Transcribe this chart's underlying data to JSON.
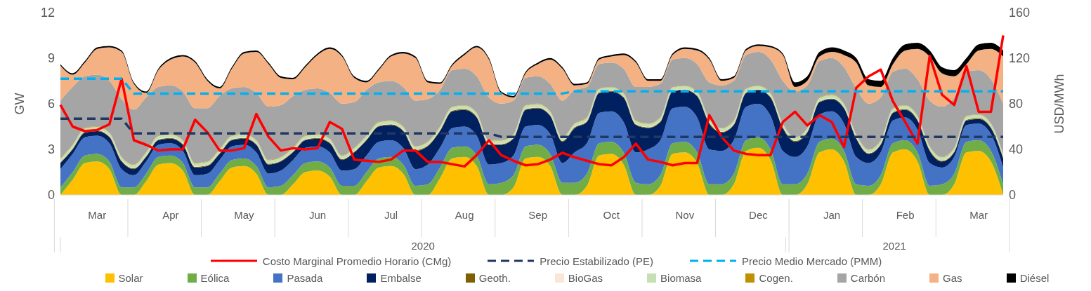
{
  "chart_data": {
    "type": "area",
    "stacked": true,
    "ylabel": "GW",
    "y2label": "USD/MWh",
    "ylim": [
      0,
      12
    ],
    "yticks": [
      0,
      3,
      6,
      9,
      12
    ],
    "y2lim": [
      0,
      160
    ],
    "y2ticks": [
      0,
      40,
      80,
      120,
      160
    ],
    "legend": "bottom",
    "annotations": [
      "2020",
      "2021"
    ],
    "categories": [
      null,
      null,
      null,
      "Mar",
      null,
      null,
      null,
      null,
      null,
      "Apr",
      null,
      null,
      null,
      null,
      null,
      "May",
      null,
      null,
      null,
      null,
      null,
      "Jun",
      null,
      null,
      null,
      null,
      null,
      "Jul",
      null,
      null,
      null,
      null,
      null,
      "Aug",
      null,
      null,
      null,
      null,
      null,
      "Sep",
      null,
      null,
      null,
      null,
      null,
      "Oct",
      null,
      null,
      null,
      null,
      null,
      "Nov",
      null,
      null,
      null,
      null,
      null,
      "Dec",
      null,
      null,
      null,
      null,
      null,
      "Jan",
      null,
      null,
      null,
      null,
      null,
      "Feb",
      null,
      null,
      null,
      null,
      null,
      "Mar",
      null,
      null
    ],
    "series": [
      {
        "name": "Solar",
        "type": "area",
        "color": "#ffc000",
        "values": [
          0,
          1.0,
          2.1,
          2.2,
          1.7,
          0,
          0,
          0.9,
          2.0,
          2.1,
          1.6,
          0,
          0,
          0.9,
          1.8,
          1.9,
          1.4,
          0,
          0,
          0.7,
          1.5,
          1.6,
          1.2,
          0,
          0,
          0.9,
          1.8,
          1.9,
          1.4,
          0,
          0,
          1.1,
          2.4,
          2.5,
          1.9,
          0,
          0,
          0.5,
          2.4,
          2.5,
          1.9,
          0,
          0,
          0.6,
          2.6,
          2.7,
          2.0,
          0,
          0,
          0.6,
          2.7,
          2.8,
          2.1,
          0,
          0,
          0.7,
          2.9,
          3.1,
          2.3,
          0,
          0,
          0.7,
          2.8,
          3.0,
          2.2,
          0,
          0,
          0.7,
          2.8,
          3.0,
          2.2,
          0,
          0,
          0.7,
          2.8,
          2.9,
          2.2,
          0
        ]
      },
      {
        "name": "Eólica",
        "type": "area",
        "color": "#70ad47",
        "values": [
          0.5,
          0.5,
          0.5,
          0.5,
          0.5,
          0.5,
          0.5,
          0.5,
          0.5,
          0.5,
          0.5,
          0.5,
          0.5,
          0.5,
          0.5,
          0.5,
          0.5,
          0.5,
          0.6,
          0.6,
          0.6,
          0.6,
          0.6,
          0.6,
          0.6,
          0.6,
          0.6,
          0.6,
          0.6,
          0.6,
          0.7,
          0.7,
          0.7,
          0.7,
          0.7,
          0.7,
          0.8,
          0.8,
          0.8,
          0.8,
          0.8,
          0.8,
          0.8,
          0.8,
          0.8,
          0.8,
          0.8,
          0.8,
          0.7,
          0.7,
          0.7,
          0.7,
          0.7,
          0.7,
          0.7,
          0.7,
          0.7,
          0.7,
          0.7,
          0.7,
          0.7,
          0.7,
          0.7,
          0.7,
          0.7,
          0.7,
          0.6,
          0.6,
          0.6,
          0.6,
          0.6,
          0.6,
          0.7,
          0.7,
          0.7,
          0.7,
          0.7,
          0.7
        ]
      },
      {
        "name": "Pasada",
        "type": "area",
        "color": "#4472c4",
        "values": [
          1.2,
          1.2,
          1.2,
          1.2,
          1.2,
          1.2,
          0.8,
          0.8,
          0.8,
          0.8,
          0.8,
          0.8,
          0.9,
          0.9,
          0.9,
          0.9,
          0.9,
          0.9,
          1.0,
          1.0,
          1.0,
          1.0,
          1.0,
          1.0,
          1.1,
          1.1,
          1.1,
          1.1,
          1.1,
          1.1,
          1.3,
          1.3,
          1.3,
          1.3,
          1.3,
          1.3,
          1.3,
          1.3,
          1.3,
          1.3,
          1.3,
          1.3,
          2.0,
          2.0,
          2.0,
          2.0,
          2.0,
          2.0,
          2.3,
          2.3,
          2.3,
          2.3,
          2.3,
          2.3,
          2.2,
          2.2,
          2.2,
          2.2,
          2.2,
          2.2,
          1.8,
          1.8,
          1.8,
          1.8,
          1.8,
          1.8,
          1.5,
          1.5,
          1.5,
          1.5,
          1.5,
          1.5,
          1.1,
          1.1,
          1.1,
          1.1,
          1.1,
          1.1
        ]
      },
      {
        "name": "Embalse",
        "type": "area",
        "color": "#002060",
        "values": [
          0.4,
          0.3,
          0.3,
          0.3,
          0.4,
          0.5,
          0.4,
          0.3,
          0.3,
          0.3,
          0.4,
          0.5,
          0.5,
          0.4,
          0.4,
          0.4,
          0.5,
          0.6,
          0.6,
          0.5,
          0.5,
          0.5,
          0.6,
          0.7,
          1.1,
          1.0,
          1.0,
          1.0,
          1.1,
          1.2,
          1.2,
          1.1,
          1.1,
          1.1,
          1.2,
          1.3,
          1.2,
          1.1,
          1.1,
          1.1,
          1.2,
          1.4,
          1.6,
          1.4,
          1.3,
          1.3,
          1.6,
          1.8,
          1.4,
          1.2,
          1.1,
          1.1,
          1.4,
          1.7,
          1.2,
          1.0,
          0.9,
          0.9,
          1.2,
          1.5,
          1.0,
          0.9,
          0.8,
          0.8,
          1.0,
          1.2,
          0.6,
          0.5,
          0.5,
          0.5,
          0.6,
          0.8,
          0.4,
          0.3,
          0.3,
          0.3,
          0.4,
          0.6
        ]
      },
      {
        "name": "Geoth.",
        "type": "area",
        "color": "#7f6000",
        "values": [
          0.05,
          0.05,
          0.05,
          0.05,
          0.05,
          0.05,
          0.05,
          0.05,
          0.05,
          0.05,
          0.05,
          0.05,
          0.05,
          0.05,
          0.05,
          0.05,
          0.05,
          0.05,
          0.05,
          0.05,
          0.05,
          0.05,
          0.05,
          0.05,
          0.05,
          0.05,
          0.05,
          0.05,
          0.05,
          0.05,
          0.05,
          0.05,
          0.05,
          0.05,
          0.05,
          0.05,
          0.05,
          0.05,
          0.05,
          0.05,
          0.05,
          0.05,
          0.05,
          0.05,
          0.05,
          0.05,
          0.05,
          0.05,
          0.05,
          0.05,
          0.05,
          0.05,
          0.05,
          0.05,
          0.05,
          0.05,
          0.05,
          0.05,
          0.05,
          0.05,
          0.05,
          0.05,
          0.05,
          0.05,
          0.05,
          0.05,
          0.05,
          0.05,
          0.05,
          0.05,
          0.05,
          0.05,
          0.05,
          0.05,
          0.05,
          0.05,
          0.05,
          0.05
        ]
      },
      {
        "name": "BioGas",
        "type": "area",
        "color": "#fbe5d6",
        "values": [
          0.03,
          0.03,
          0.03,
          0.03,
          0.03,
          0.03,
          0.03,
          0.03,
          0.03,
          0.03,
          0.03,
          0.03,
          0.03,
          0.03,
          0.03,
          0.03,
          0.03,
          0.03,
          0.03,
          0.03,
          0.03,
          0.03,
          0.03,
          0.03,
          0.03,
          0.03,
          0.03,
          0.03,
          0.03,
          0.03,
          0.03,
          0.03,
          0.03,
          0.03,
          0.03,
          0.03,
          0.03,
          0.03,
          0.03,
          0.03,
          0.03,
          0.03,
          0.03,
          0.03,
          0.03,
          0.03,
          0.03,
          0.03,
          0.03,
          0.03,
          0.03,
          0.03,
          0.03,
          0.03,
          0.03,
          0.03,
          0.03,
          0.03,
          0.03,
          0.03,
          0.03,
          0.03,
          0.03,
          0.03,
          0.03,
          0.03,
          0.03,
          0.03,
          0.03,
          0.03,
          0.03,
          0.03,
          0.03,
          0.03,
          0.03,
          0.03,
          0.03,
          0.03
        ]
      },
      {
        "name": "Biomasa",
        "type": "area",
        "color": "#c5e0b4",
        "values": [
          0.2,
          0.2,
          0.2,
          0.2,
          0.2,
          0.2,
          0.2,
          0.2,
          0.2,
          0.2,
          0.2,
          0.2,
          0.2,
          0.2,
          0.2,
          0.2,
          0.2,
          0.2,
          0.2,
          0.2,
          0.2,
          0.2,
          0.2,
          0.2,
          0.2,
          0.2,
          0.2,
          0.2,
          0.2,
          0.2,
          0.2,
          0.2,
          0.2,
          0.2,
          0.2,
          0.2,
          0.2,
          0.2,
          0.2,
          0.2,
          0.2,
          0.2,
          0.2,
          0.2,
          0.2,
          0.2,
          0.2,
          0.2,
          0.2,
          0.2,
          0.2,
          0.2,
          0.2,
          0.2,
          0.2,
          0.2,
          0.2,
          0.2,
          0.2,
          0.2,
          0.2,
          0.2,
          0.2,
          0.2,
          0.2,
          0.2,
          0.2,
          0.2,
          0.2,
          0.2,
          0.2,
          0.2,
          0.2,
          0.2,
          0.2,
          0.2,
          0.2,
          0.2
        ]
      },
      {
        "name": "Cogen.",
        "type": "area",
        "color": "#bf9000",
        "values": [
          0.03,
          0.03,
          0.03,
          0.03,
          0.03,
          0.03,
          0.03,
          0.03,
          0.03,
          0.03,
          0.03,
          0.03,
          0.03,
          0.03,
          0.03,
          0.03,
          0.03,
          0.03,
          0.03,
          0.03,
          0.03,
          0.03,
          0.03,
          0.03,
          0.03,
          0.03,
          0.03,
          0.03,
          0.03,
          0.03,
          0.03,
          0.03,
          0.03,
          0.03,
          0.03,
          0.03,
          0.03,
          0.03,
          0.03,
          0.03,
          0.03,
          0.03,
          0.03,
          0.03,
          0.03,
          0.03,
          0.03,
          0.03,
          0.03,
          0.03,
          0.03,
          0.03,
          0.03,
          0.03,
          0.03,
          0.03,
          0.03,
          0.03,
          0.03,
          0.03,
          0.03,
          0.03,
          0.03,
          0.03,
          0.03,
          0.03,
          0.03,
          0.03,
          0.03,
          0.03,
          0.03,
          0.03,
          0.03,
          0.03,
          0.03,
          0.03,
          0.03,
          0.03
        ]
      },
      {
        "name": "Carbón",
        "type": "area",
        "color": "#a5a5a5",
        "values": [
          3.8,
          3.8,
          3.4,
          3.4,
          3.4,
          3.8,
          3.6,
          3.6,
          3.2,
          3.2,
          3.2,
          3.6,
          3.5,
          3.5,
          3.1,
          3.1,
          3.1,
          3.5,
          3.4,
          3.4,
          3.0,
          3.0,
          3.0,
          3.4,
          3.0,
          3.0,
          2.6,
          2.6,
          2.6,
          3.0,
          2.8,
          2.4,
          2.4,
          2.4,
          2.4,
          2.8,
          2.4,
          2.2,
          1.8,
          1.8,
          1.8,
          2.4,
          2.2,
          2.0,
          1.6,
          1.6,
          1.6,
          2.2,
          2.4,
          2.2,
          1.8,
          1.8,
          1.8,
          2.4,
          2.8,
          2.6,
          2.2,
          2.2,
          2.2,
          2.8,
          3.0,
          2.8,
          2.4,
          2.4,
          2.4,
          3.0,
          3.0,
          2.8,
          2.4,
          2.4,
          2.4,
          3.0,
          3.3,
          3.3,
          2.9,
          2.9,
          2.9,
          3.3
        ]
      },
      {
        "name": "Gas",
        "type": "area",
        "color": "#f4b183",
        "values": [
          2.3,
          0.8,
          0.9,
          1.7,
          2.2,
          3.1,
          1.7,
          0.3,
          1.1,
          1.7,
          2.3,
          3.0,
          1.8,
          0.5,
          1.3,
          2.2,
          2.7,
          2.8,
          1.8,
          1.1,
          1.5,
          2.2,
          2.9,
          3.1,
          1.6,
          0.5,
          0.8,
          1.6,
          2.2,
          2.8,
          1.1,
          0.4,
          0.3,
          0.9,
          1.9,
          2.5,
          0.7,
          0.2,
          0.3,
          0.8,
          1.6,
          2.1,
          0.3,
          0.2,
          0.3,
          0.4,
          0.9,
          1.6,
          0.4,
          0.2,
          0.3,
          0.6,
          0.9,
          1.5,
          0.3,
          0.2,
          0.3,
          0.4,
          0.8,
          1.7,
          0.3,
          0.3,
          0.3,
          0.4,
          0.8,
          1.7,
          1.2,
          0.7,
          0.5,
          1.2,
          2.0,
          2.9,
          2.2,
          1.4,
          0.5,
          1.3,
          2.0,
          3.1
        ]
      },
      {
        "name": "Diésel",
        "type": "area",
        "color": "#000000",
        "values": [
          0.1,
          0.1,
          0.1,
          0.1,
          0.1,
          0.1,
          0.1,
          0.1,
          0.1,
          0.1,
          0.1,
          0.1,
          0.1,
          0.1,
          0.1,
          0.1,
          0.1,
          0.1,
          0.1,
          0.1,
          0.1,
          0.1,
          0.1,
          0.1,
          0.1,
          0.1,
          0.1,
          0.1,
          0.1,
          0.1,
          0.1,
          0.1,
          0.1,
          0.1,
          0.1,
          0.1,
          0.1,
          0.1,
          0.1,
          0.1,
          0.1,
          0.1,
          0.1,
          0.1,
          0.1,
          0.1,
          0.1,
          0.1,
          0.1,
          0.1,
          0.1,
          0.1,
          0.1,
          0.1,
          0.1,
          0.1,
          0.1,
          0.1,
          0.1,
          0.1,
          0.3,
          0.3,
          0.3,
          0.3,
          0.3,
          0.3,
          0.4,
          0.4,
          0.4,
          0.4,
          0.4,
          0.4,
          0.4,
          0.4,
          0.4,
          0.4,
          0.4,
          0.4
        ]
      },
      {
        "name": "Costo Marginal Promedio Horario (CMg)",
        "type": "line",
        "axis": "y2",
        "line_style": "solid",
        "color": "#ff0000",
        "values": [
          79,
          60,
          56,
          57,
          62,
          102,
          48,
          44,
          39,
          40,
          40,
          66,
          55,
          39,
          39,
          41,
          71,
          51,
          39,
          41,
          40,
          41,
          64,
          58,
          31,
          30,
          29,
          31,
          39,
          39,
          29,
          29,
          27,
          25,
          35,
          48,
          35,
          30,
          26,
          27,
          31,
          37,
          33,
          30,
          27,
          26,
          33,
          45,
          31,
          29,
          26,
          28,
          28,
          70,
          51,
          39,
          36,
          35,
          35,
          64,
          73,
          61,
          70,
          64,
          42,
          94,
          104,
          110,
          82,
          64,
          45,
          122,
          88,
          79,
          113,
          73,
          73,
          140
        ]
      },
      {
        "name": "Precio Estabilizado (PE)",
        "type": "line",
        "axis": "y2",
        "line_style": "dashed",
        "color": "#203864",
        "values": [
          67,
          67,
          67,
          67,
          67,
          67,
          54,
          54,
          54,
          54,
          54,
          54,
          54,
          54,
          54,
          54,
          54,
          54,
          54,
          54,
          54,
          54,
          54,
          54,
          54,
          54,
          54,
          54,
          54,
          54,
          54,
          54,
          54,
          54,
          54,
          54,
          51,
          51,
          51,
          51,
          51,
          51,
          51,
          51,
          51,
          51,
          51,
          51,
          51,
          51,
          51,
          51,
          51,
          51,
          51,
          51,
          51,
          51,
          51,
          51,
          51,
          51,
          51,
          51,
          51,
          51,
          51,
          51,
          51,
          51,
          51,
          51,
          51,
          51,
          51,
          51,
          51,
          51
        ]
      },
      {
        "name": "Precio Medio Mercado (PMM)",
        "type": "line",
        "axis": "y2",
        "line_style": "dashed",
        "color": "#00b0f0",
        "values": [
          102,
          102,
          102,
          102,
          102,
          102,
          89,
          89,
          89,
          89,
          89,
          89,
          89,
          89,
          89,
          89,
          89,
          89,
          89,
          89,
          89,
          89,
          89,
          89,
          89,
          89,
          89,
          89,
          89,
          89,
          89,
          89,
          89,
          89,
          89,
          89,
          89,
          89,
          89,
          89,
          89,
          89,
          91,
          91,
          91,
          91,
          91,
          91,
          91,
          91,
          91,
          91,
          91,
          91,
          91,
          91,
          91,
          91,
          91,
          91,
          91,
          91,
          91,
          91,
          91,
          91,
          91,
          91,
          91,
          91,
          91,
          91,
          91,
          91,
          91,
          91,
          91,
          91
        ]
      }
    ]
  }
}
